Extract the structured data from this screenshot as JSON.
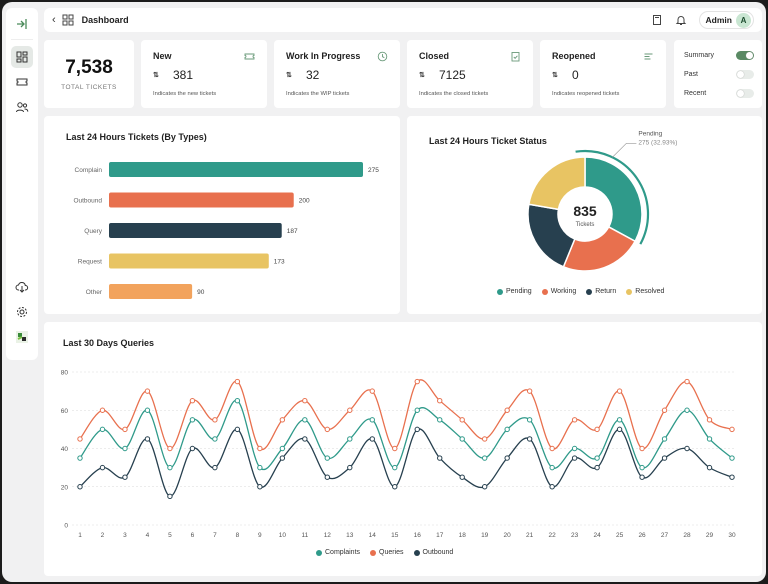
{
  "header": {
    "title": "Dashboard",
    "user_name": "Admin",
    "avatar_initial": "A"
  },
  "sidebar": {
    "items": [
      {
        "icon": "collapse-icon"
      },
      {
        "icon": "dashboard-icon"
      },
      {
        "icon": "ticket-icon"
      },
      {
        "icon": "users-icon"
      },
      {
        "icon": "cloud-download-icon"
      },
      {
        "icon": "settings-icon"
      },
      {
        "icon": "app-logo-icon"
      }
    ]
  },
  "total": {
    "value": "7,538",
    "label": "TOTAL TICKETS"
  },
  "kpis": [
    {
      "title": "New",
      "value": "381",
      "desc": "Indicates the new tickets",
      "icon": "ticket-icon"
    },
    {
      "title": "Work In Progress",
      "value": "32",
      "desc": "Indicates the WIP tickets",
      "icon": "clock-icon"
    },
    {
      "title": "Closed",
      "value": "7125",
      "desc": "Indicates the closed tickets",
      "icon": "clipboard-check-icon"
    },
    {
      "title": "Reopened",
      "value": "0",
      "desc": "Indicates reopened tickets",
      "icon": "list-icon"
    }
  ],
  "toggles": [
    {
      "label": "Summary",
      "on": true
    },
    {
      "label": "Past",
      "on": false
    },
    {
      "label": "Recent",
      "on": false
    }
  ],
  "colors": {
    "teal": "#2f9a8a",
    "orange": "#e8704e",
    "navy": "#27404f",
    "yellow": "#e8c463",
    "light_orange": "#f2a35d"
  },
  "bar_panel": {
    "title": "Last 24 Hours Tickets (By Types)"
  },
  "donut_panel": {
    "title": "Last 24 Hours Ticket Status",
    "center_value": "835",
    "center_label": "Tickets",
    "callout_title": "Pending",
    "callout_value": "275 (32.93%)"
  },
  "line_panel": {
    "title": "Last 30 Days Queries"
  },
  "chart_data": [
    {
      "type": "bar",
      "orientation": "horizontal",
      "title": "Last 24 Hours Tickets (By Types)",
      "categories": [
        "Complain",
        "Outbound",
        "Query",
        "Request",
        "Other"
      ],
      "values": [
        275,
        200,
        187,
        173,
        90
      ],
      "colors": [
        "#2f9a8a",
        "#e8704e",
        "#27404f",
        "#e8c463",
        "#f2a35d"
      ]
    },
    {
      "type": "pie",
      "subtype": "donut",
      "title": "Last 24 Hours Ticket Status",
      "total": 835,
      "labels": [
        "Pending",
        "Working",
        "Return",
        "Resolved"
      ],
      "values": [
        275,
        194,
        180,
        186
      ],
      "colors": [
        "#2f9a8a",
        "#e8704e",
        "#27404f",
        "#e8c463"
      ]
    },
    {
      "type": "line",
      "title": "Last 30 Days Queries",
      "x": [
        1,
        2,
        3,
        4,
        5,
        6,
        7,
        8,
        9,
        10,
        11,
        12,
        13,
        14,
        15,
        16,
        17,
        18,
        19,
        20,
        21,
        22,
        23,
        24,
        25,
        26,
        27,
        28,
        29,
        30
      ],
      "ylim": [
        0,
        80
      ],
      "yticks": [
        0,
        20,
        40,
        60,
        80
      ],
      "grid": true,
      "legend": "bottom",
      "series": [
        {
          "name": "Complaints",
          "color": "#2f9a8a",
          "values": [
            35,
            50,
            40,
            60,
            30,
            55,
            45,
            65,
            30,
            40,
            55,
            35,
            45,
            55,
            30,
            60,
            55,
            45,
            35,
            50,
            55,
            30,
            40,
            35,
            55,
            30,
            45,
            60,
            45,
            35
          ]
        },
        {
          "name": "Queries",
          "color": "#e8704e",
          "values": [
            45,
            60,
            50,
            70,
            40,
            65,
            55,
            75,
            40,
            55,
            65,
            50,
            60,
            70,
            40,
            75,
            65,
            55,
            45,
            60,
            70,
            40,
            55,
            50,
            70,
            40,
            60,
            75,
            55,
            50
          ]
        },
        {
          "name": "Outbound",
          "color": "#27404f",
          "values": [
            20,
            30,
            25,
            45,
            15,
            40,
            30,
            50,
            20,
            35,
            45,
            25,
            30,
            45,
            20,
            50,
            35,
            25,
            20,
            35,
            45,
            20,
            35,
            30,
            50,
            25,
            35,
            40,
            30,
            25
          ]
        }
      ]
    }
  ]
}
